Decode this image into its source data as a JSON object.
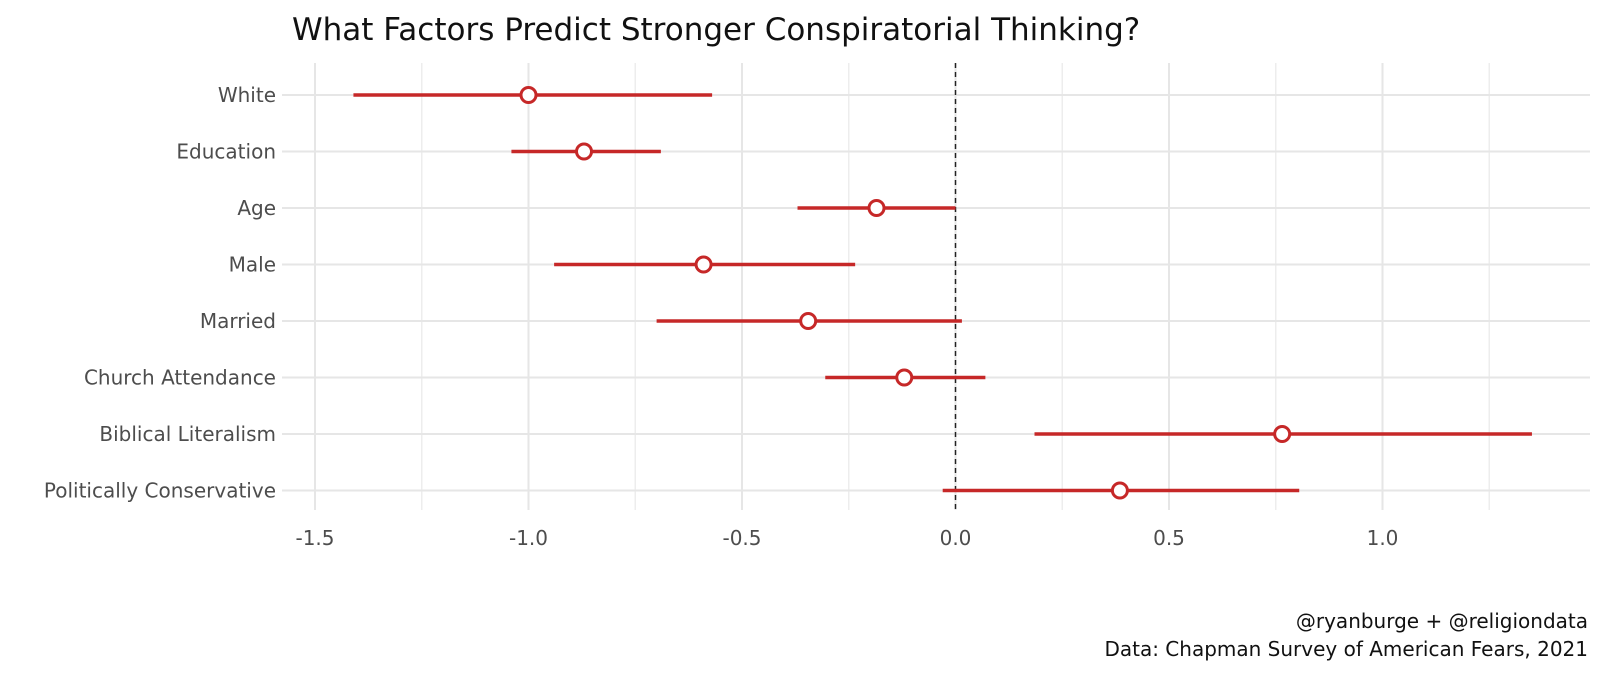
{
  "chart_data": {
    "type": "scatter",
    "subtype": "coefficient-plot",
    "title": "What Factors Predict Stronger Conspiratorial Thinking?",
    "xlabel": "",
    "ylabel": "",
    "xlim": [
      -1.55,
      1.45
    ],
    "x_ticks": [
      -1.5,
      -1.0,
      -0.5,
      0.0,
      0.5,
      1.0
    ],
    "x_tick_labels": [
      "-1.5",
      "-1.0",
      "-0.5",
      "0.0",
      "0.5",
      "1.0"
    ],
    "reference_line": 0,
    "grid": true,
    "point_color": "#c62828",
    "line_color": "#c62828",
    "categories": [
      "White",
      "Education",
      "Age",
      "Male",
      "Married",
      "Church Attendance",
      "Biblical Literalism",
      "Politically Conservative"
    ],
    "estimates": [
      -1.0,
      -0.87,
      -0.185,
      -0.59,
      -0.345,
      -0.12,
      0.765,
      0.385
    ],
    "ci_low": [
      -1.41,
      -1.04,
      -0.37,
      -0.94,
      -0.7,
      -0.305,
      0.185,
      -0.03
    ],
    "ci_high": [
      -0.57,
      -0.69,
      0.0,
      -0.235,
      0.015,
      0.07,
      1.35,
      0.805
    ],
    "caption": [
      "@ryanburge + @religiondata",
      "Data: Chapman Survey of American Fears, 2021"
    ]
  }
}
